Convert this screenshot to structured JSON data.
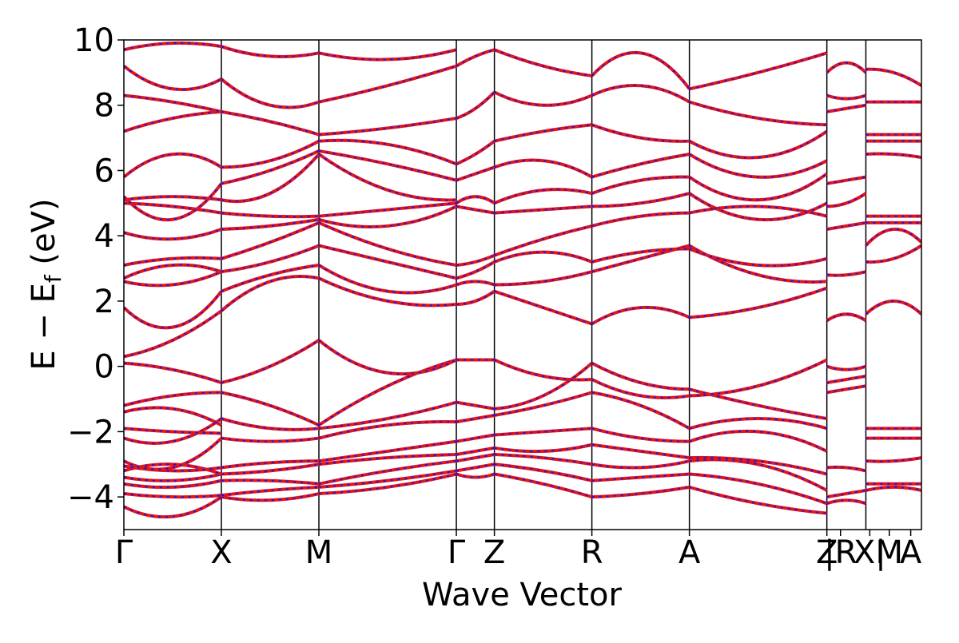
{
  "chart_data": {
    "type": "line",
    "title": "",
    "xlabel": "Wave Vector",
    "ylabel": "E − E",
    "ylabel_sub": "f",
    "ylabel_unit": " (eV)",
    "ylim": [
      -5,
      10
    ],
    "yticks": [
      -4,
      -2,
      0,
      2,
      4,
      6,
      8,
      10
    ],
    "ytick_labels": [
      "−4",
      "−2",
      "0",
      "2",
      "4",
      "6",
      "8",
      "10"
    ],
    "x_range": [
      0,
      8.18
    ],
    "kpoints": [
      {
        "label": "Γ",
        "x": 0.0
      },
      {
        "label": "X",
        "x": 1.0
      },
      {
        "label": "M",
        "x": 2.0
      },
      {
        "label": "Γ",
        "x": 3.41
      },
      {
        "label": "Z",
        "x": 3.8
      },
      {
        "label": "R",
        "x": 4.8
      },
      {
        "label": "A",
        "x": 5.8
      },
      {
        "label": "Z",
        "x": 7.21
      },
      {
        "label": "|R",
        "x": 7.35
      },
      {
        "label": "X|",
        "x": 7.65
      },
      {
        "label": "M",
        "x": 7.85
      },
      {
        "label": "A",
        "x": 8.07
      }
    ],
    "divider_x": [
      1.0,
      2.0,
      3.41,
      3.8,
      4.8,
      5.8,
      7.21,
      7.61
    ],
    "grid": false,
    "series_colors": {
      "solid": "#e0161b",
      "dashed": "#1a14e8"
    },
    "segments": [
      {
        "x0": 0.0,
        "x1": 1.0,
        "bands": [
          [
            -4.3,
            -4.6,
            -4.0
          ],
          [
            -3.9,
            -4.0,
            -3.95
          ],
          [
            -3.6,
            -3.7,
            -3.5
          ],
          [
            -3.4,
            -3.5,
            -3.3
          ],
          [
            -3.2,
            -3.0,
            -3.3
          ],
          [
            -3.05,
            -3.2,
            -3.1
          ],
          [
            -2.9,
            -3.1,
            -2.2
          ],
          [
            -2.2,
            -2.3,
            -1.6
          ],
          [
            -1.9,
            -2.0,
            -2.05
          ],
          [
            -1.4,
            -1.3,
            -1.8
          ],
          [
            -1.2,
            -0.9,
            -0.8
          ],
          [
            0.1,
            -0.1,
            -0.5
          ],
          [
            0.3,
            0.8,
            1.7
          ],
          [
            1.8,
            1.2,
            2.3
          ],
          [
            2.6,
            2.5,
            2.9
          ],
          [
            2.7,
            3.1,
            2.9
          ],
          [
            3.1,
            3.3,
            3.3
          ],
          [
            4.1,
            3.9,
            4.2
          ],
          [
            5.0,
            4.9,
            4.7
          ],
          [
            5.1,
            5.2,
            5.1
          ],
          [
            5.2,
            4.5,
            5.6
          ],
          [
            5.8,
            6.5,
            6.1
          ],
          [
            7.2,
            7.6,
            7.8
          ],
          [
            8.3,
            8.1,
            7.8
          ],
          [
            9.2,
            8.5,
            8.8
          ],
          [
            9.7,
            9.9,
            9.8
          ]
        ]
      },
      {
        "x0": 1.0,
        "x1": 2.0,
        "bands": [
          [
            -4.0,
            -4.1,
            -3.9
          ],
          [
            -3.95,
            -3.8,
            -3.7
          ],
          [
            -3.5,
            -3.5,
            -3.6
          ],
          [
            -3.3,
            -3.2,
            -3.0
          ],
          [
            -3.1,
            -2.95,
            -2.9
          ],
          [
            -2.2,
            -2.3,
            -2.2
          ],
          [
            -1.6,
            -1.9,
            -1.9
          ],
          [
            -0.8,
            -1.2,
            -1.8
          ],
          [
            -0.5,
            0.0,
            0.8
          ],
          [
            1.7,
            2.6,
            2.7
          ],
          [
            2.3,
            2.8,
            3.1
          ],
          [
            2.9,
            3.2,
            3.7
          ],
          [
            3.3,
            3.8,
            4.4
          ],
          [
            4.2,
            4.3,
            4.5
          ],
          [
            4.7,
            4.6,
            4.6
          ],
          [
            5.1,
            5.3,
            6.5
          ],
          [
            5.6,
            6.0,
            6.6
          ],
          [
            6.1,
            6.3,
            6.9
          ],
          [
            7.8,
            7.5,
            7.1
          ],
          [
            8.8,
            8.0,
            8.1
          ],
          [
            9.8,
            9.5,
            9.6
          ]
        ]
      },
      {
        "x0": 2.0,
        "x1": 3.41,
        "bands": [
          [
            -3.9,
            -3.7,
            -3.3
          ],
          [
            -3.7,
            -3.5,
            -3.2
          ],
          [
            -3.6,
            -3.2,
            -2.9
          ],
          [
            -3.0,
            -2.8,
            -2.7
          ],
          [
            -2.9,
            -2.6,
            -2.3
          ],
          [
            -2.2,
            -1.8,
            -1.7
          ],
          [
            -1.9,
            -1.6,
            -1.1
          ],
          [
            -1.8,
            -0.6,
            0.2
          ],
          [
            0.8,
            -0.2,
            0.2
          ],
          [
            2.7,
            2.0,
            1.9
          ],
          [
            3.1,
            2.3,
            2.5
          ],
          [
            3.7,
            3.2,
            2.7
          ],
          [
            4.4,
            3.6,
            3.1
          ],
          [
            4.5,
            4.3,
            4.9
          ],
          [
            4.6,
            4.8,
            5.0
          ],
          [
            6.5,
            5.4,
            5.1
          ],
          [
            6.6,
            6.2,
            5.7
          ],
          [
            6.9,
            6.8,
            6.2
          ],
          [
            7.1,
            7.3,
            7.6
          ],
          [
            8.1,
            8.6,
            9.2
          ],
          [
            9.6,
            9.4,
            9.7
          ]
        ]
      },
      {
        "x0": 3.41,
        "x1": 3.8,
        "bands": [
          [
            -3.3,
            -3.4,
            -3.3
          ],
          [
            -3.2,
            -3.1,
            -3.0
          ],
          [
            -2.9,
            -2.8,
            -2.7
          ],
          [
            -2.7,
            -2.6,
            -2.5
          ],
          [
            -2.3,
            -2.2,
            -2.1
          ],
          [
            -1.7,
            -1.6,
            -1.5
          ],
          [
            -1.1,
            -1.2,
            -1.3
          ],
          [
            0.2,
            0.2,
            0.2
          ],
          [
            1.9,
            2.0,
            2.3
          ],
          [
            2.5,
            2.6,
            2.5
          ],
          [
            2.7,
            2.9,
            3.2
          ],
          [
            3.1,
            3.2,
            3.4
          ],
          [
            4.9,
            4.8,
            4.7
          ],
          [
            5.0,
            5.2,
            5.0
          ],
          [
            5.7,
            5.9,
            6.1
          ],
          [
            6.2,
            6.5,
            6.9
          ],
          [
            7.6,
            7.9,
            8.4
          ],
          [
            9.2,
            9.5,
            9.7
          ]
        ]
      },
      {
        "x0": 3.8,
        "x1": 4.8,
        "bands": [
          [
            -3.3,
            -3.6,
            -4.0
          ],
          [
            -3.0,
            -3.2,
            -3.5
          ],
          [
            -2.7,
            -2.8,
            -3.0
          ],
          [
            -2.5,
            -2.6,
            -2.4
          ],
          [
            -2.1,
            -2.0,
            -1.9
          ],
          [
            -1.5,
            -1.2,
            -0.8
          ],
          [
            -1.3,
            -0.9,
            0.1
          ],
          [
            0.2,
            -0.3,
            -0.4
          ],
          [
            2.3,
            1.8,
            1.3
          ],
          [
            2.5,
            2.6,
            2.9
          ],
          [
            3.2,
            3.5,
            3.2
          ],
          [
            3.4,
            3.9,
            4.3
          ],
          [
            4.7,
            4.8,
            4.9
          ],
          [
            5.0,
            5.4,
            5.3
          ],
          [
            6.1,
            6.3,
            5.8
          ],
          [
            6.9,
            7.2,
            7.4
          ],
          [
            8.4,
            8.0,
            8.3
          ],
          [
            9.7,
            9.2,
            8.9
          ]
        ]
      },
      {
        "x0": 4.8,
        "x1": 5.8,
        "bands": [
          [
            -4.0,
            -3.9,
            -3.7
          ],
          [
            -3.5,
            -3.4,
            -3.3
          ],
          [
            -3.0,
            -3.1,
            -2.9
          ],
          [
            -2.4,
            -2.6,
            -2.8
          ],
          [
            -1.9,
            -2.2,
            -2.3
          ],
          [
            -0.8,
            -1.2,
            -1.9
          ],
          [
            0.1,
            -0.5,
            -0.7
          ],
          [
            -0.4,
            -0.9,
            -0.9
          ],
          [
            1.3,
            1.8,
            1.5
          ],
          [
            2.9,
            3.3,
            3.7
          ],
          [
            3.2,
            3.5,
            3.6
          ],
          [
            4.3,
            4.6,
            4.7
          ],
          [
            4.9,
            5.0,
            5.3
          ],
          [
            5.3,
            5.7,
            5.8
          ],
          [
            5.8,
            6.2,
            6.5
          ],
          [
            7.4,
            7.0,
            6.9
          ],
          [
            8.3,
            8.6,
            8.1
          ],
          [
            8.9,
            9.6,
            8.5
          ]
        ]
      },
      {
        "x0": 5.8,
        "x1": 7.21,
        "bands": [
          [
            -3.7,
            -4.2,
            -4.5
          ],
          [
            -3.3,
            -3.6,
            -4.2
          ],
          [
            -2.9,
            -3.0,
            -3.8
          ],
          [
            -2.8,
            -2.9,
            -3.3
          ],
          [
            -2.3,
            -2.0,
            -2.6
          ],
          [
            -1.9,
            -1.6,
            -1.9
          ],
          [
            -0.7,
            -1.2,
            -1.6
          ],
          [
            -0.9,
            -0.6,
            0.2
          ],
          [
            1.5,
            1.8,
            2.4
          ],
          [
            3.7,
            2.8,
            2.6
          ],
          [
            3.6,
            3.1,
            3.3
          ],
          [
            4.7,
            4.9,
            4.6
          ],
          [
            5.3,
            4.5,
            5.0
          ],
          [
            5.8,
            5.1,
            5.9
          ],
          [
            6.5,
            5.8,
            6.3
          ],
          [
            6.9,
            6.4,
            7.2
          ],
          [
            8.1,
            7.6,
            7.4
          ],
          [
            8.5,
            9.0,
            9.6
          ]
        ]
      },
      {
        "x0": 7.21,
        "x1": 7.61,
        "bands": [
          [
            -4.2,
            -4.1,
            -4.2
          ],
          [
            -4.0,
            -3.9,
            -3.8
          ],
          [
            -3.1,
            -3.1,
            -3.2
          ],
          [
            -0.5,
            -0.4,
            -0.3
          ],
          [
            -0.8,
            -0.7,
            -0.6
          ],
          [
            0.0,
            -0.1,
            0.0
          ],
          [
            1.4,
            1.6,
            1.4
          ],
          [
            2.8,
            2.8,
            2.9
          ],
          [
            4.2,
            4.3,
            4.4
          ],
          [
            4.9,
            5.0,
            5.3
          ],
          [
            5.6,
            5.7,
            5.8
          ],
          [
            7.8,
            7.9,
            8.0
          ],
          [
            8.3,
            8.2,
            8.3
          ],
          [
            9.0,
            9.3,
            9.0
          ]
        ]
      },
      {
        "x0": 7.61,
        "x1": 8.18,
        "bands": [
          [
            -3.8,
            -3.7,
            -3.8
          ],
          [
            -3.6,
            -3.6,
            -3.6
          ],
          [
            -2.9,
            -2.9,
            -2.8
          ],
          [
            -2.2,
            -2.2,
            -2.2
          ],
          [
            -1.9,
            -1.9,
            -1.9
          ],
          [
            1.6,
            2.0,
            1.6
          ],
          [
            3.2,
            3.3,
            3.7
          ],
          [
            3.7,
            4.2,
            3.8
          ],
          [
            4.4,
            4.4,
            4.4
          ],
          [
            4.6,
            4.6,
            4.6
          ],
          [
            6.5,
            6.5,
            6.4
          ],
          [
            6.9,
            6.9,
            6.9
          ],
          [
            7.1,
            7.1,
            7.1
          ],
          [
            8.1,
            8.1,
            8.1
          ],
          [
            9.1,
            9.0,
            8.6
          ]
        ]
      }
    ]
  }
}
